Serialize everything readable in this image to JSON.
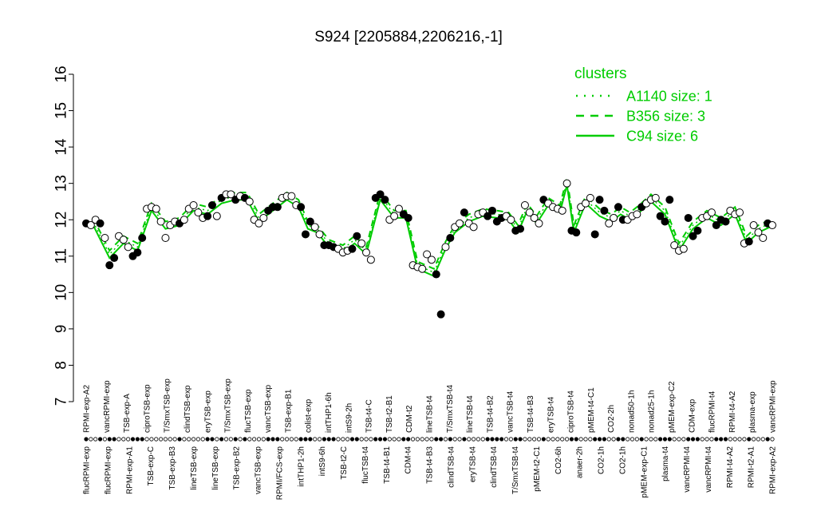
{
  "chart_data": {
    "type": "line",
    "title": "S924 [2205884,2206216,-1]",
    "xlabel": "",
    "ylabel": "",
    "ylim": [
      7,
      16
    ],
    "yticks": [
      7,
      8,
      9,
      10,
      11,
      12,
      13,
      14,
      15,
      16
    ],
    "grid": false,
    "line_color": "#00cc00",
    "legend": {
      "position": "top-right",
      "title": "clusters",
      "entries": [
        {
          "label": "A1140 size: 1",
          "style": "dotted"
        },
        {
          "label": "B356 size: 3",
          "style": "dashed"
        },
        {
          "label": "C94 size: 6",
          "style": "solid"
        }
      ]
    },
    "top_labels": [
      "RPMI-exp-A2",
      "vancRPMI-exp",
      "TSB-exp-A",
      "ciproTSB-exp",
      "T/SmxTSB-exp",
      "clindTSB-exp",
      "eryTSB-exp",
      "T/SmxTSB-exp",
      "flucTSB-exp",
      "vancTSB-exp",
      "TSB-exp-B1",
      "colist-exp",
      "intTHP1-6h",
      "intS9-2h",
      "TSB-t4-C",
      "TSB-t2-B1",
      "CDM-t2",
      "lineTSB-t4",
      "T/SmxTSB-t4",
      "lineTSB-t4",
      "TSB-t4-B2",
      "vancTSB-t4",
      "TSB-t4-B3",
      "eryTSB-t4",
      "ciproTSB-t4",
      "pMEM-t4-C1",
      "CO2-2h",
      "nonad50-1h",
      "nonad25-1h",
      "pMEM-exp-C2",
      "CDM-exp",
      "flucRPMI-t4",
      "RPMI-t4-A2",
      "plasma-exp",
      "vancRPMI-exp"
    ],
    "bottom_labels": [
      "flucRPMI-exp",
      "flucRPMI-exp",
      "RPMI-exp-A1",
      "TSB-exp-C",
      "TSB-exp-B3",
      "lineTSB-exp",
      "lineTSB-exp",
      "TSB-exp-B2",
      "vancTSB-exp",
      "RPMI/FCS-exp",
      "intTHP1-2h",
      "intS9-6h",
      "TSB-t2-C",
      "flucTSB-t4",
      "TSB-t4-B1",
      "CDM-t4",
      "TSB-t4-B3",
      "clindTSB-t4",
      "eryTSB-t4",
      "clindTSB-t4",
      "T/SmxTSB-t4",
      "pMEM-t2-C1",
      "CO2-6h",
      "anaer-2h",
      "CO2-1h",
      "CO2-1h",
      "pMEM-exp-C1",
      "plasma-t4",
      "vancRPMI-t4",
      "vancRPMI-t4",
      "RPMI-t4-A2",
      "RPMI-t2-A1",
      "RPMI-exp-A2"
    ],
    "groups": [
      {
        "points": [
          11.9,
          11.85,
          12.0,
          11.9
        ],
        "mean": 11.9,
        "filled": [
          true,
          false,
          false,
          true
        ]
      },
      {
        "points": [
          11.5,
          10.75,
          10.95
        ],
        "mean": 11.0,
        "filled": [
          false,
          true,
          true
        ]
      },
      {
        "points": [
          11.55,
          11.45,
          11.25
        ],
        "mean": 11.4,
        "filled": [
          false,
          false,
          false
        ]
      },
      {
        "points": [
          11.0,
          11.1,
          11.5
        ],
        "mean": 11.2,
        "filled": [
          true,
          true,
          true
        ]
      },
      {
        "points": [
          12.3,
          12.35,
          12.3
        ],
        "mean": 12.3,
        "filled": [
          false,
          false,
          false
        ]
      },
      {
        "points": [
          11.95,
          11.5,
          11.85
        ],
        "mean": 11.8,
        "filled": [
          false,
          false,
          false
        ]
      },
      {
        "points": [
          11.95,
          11.9,
          12.0
        ],
        "mean": 11.9,
        "filled": [
          false,
          true,
          false
        ]
      },
      {
        "points": [
          12.3,
          12.4,
          12.2
        ],
        "mean": 12.3,
        "filled": [
          false,
          false,
          false
        ]
      },
      {
        "points": [
          12.05,
          12.1,
          12.4
        ],
        "mean": 12.2,
        "filled": [
          false,
          true,
          true
        ]
      },
      {
        "points": [
          12.1,
          12.6,
          12.7
        ],
        "mean": 12.5,
        "filled": [
          false,
          true,
          false
        ]
      },
      {
        "points": [
          12.7,
          12.55,
          12.65
        ],
        "mean": 12.6,
        "filled": [
          false,
          true,
          false
        ]
      },
      {
        "points": [
          12.6,
          12.5
        ],
        "mean": 12.6,
        "filled": [
          true,
          false
        ]
      },
      {
        "points": [
          12.0,
          11.9,
          12.05
        ],
        "mean": 12.0,
        "filled": [
          false,
          false,
          false
        ]
      },
      {
        "points": [
          12.25,
          12.35,
          12.35
        ],
        "mean": 12.3,
        "filled": [
          true,
          true,
          true
        ]
      },
      {
        "points": [
          12.6,
          12.65,
          12.65
        ],
        "mean": 12.6,
        "filled": [
          false,
          false,
          false
        ]
      },
      {
        "points": [
          12.4,
          12.35
        ],
        "mean": 12.4,
        "filled": [
          false,
          true
        ]
      },
      {
        "points": [
          11.6,
          11.95
        ],
        "mean": 11.8,
        "filled": [
          true,
          true
        ]
      },
      {
        "points": [
          11.8,
          11.6
        ],
        "mean": 11.7,
        "filled": [
          false,
          false
        ]
      },
      {
        "points": [
          11.3,
          11.3,
          11.25
        ],
        "mean": 11.3,
        "filled": [
          true,
          true,
          true
        ]
      },
      {
        "points": [
          11.2,
          11.1,
          11.15
        ],
        "mean": 11.15,
        "filled": [
          false,
          false,
          false
        ]
      },
      {
        "points": [
          11.2,
          11.55
        ],
        "mean": 11.4,
        "filled": [
          true,
          true
        ]
      },
      {
        "points": [
          11.35,
          11.1,
          10.9
        ],
        "mean": 11.1,
        "filled": [
          false,
          false,
          false
        ]
      },
      {
        "points": [
          12.6,
          12.7,
          12.55
        ],
        "mean": 12.6,
        "filled": [
          true,
          true,
          true
        ]
      },
      {
        "points": [
          12.0,
          12.1,
          12.3
        ],
        "mean": 12.1,
        "filled": [
          false,
          false,
          false
        ]
      },
      {
        "points": [
          12.15,
          12.05
        ],
        "mean": 12.1,
        "filled": [
          true,
          true
        ]
      },
      {
        "points": [
          10.75,
          10.7,
          10.65
        ],
        "mean": 10.7,
        "filled": [
          false,
          false,
          false
        ]
      },
      {
        "points": [
          11.05,
          10.9,
          10.5,
          9.4
        ],
        "mean": 10.5,
        "filled": [
          false,
          false,
          true,
          true
        ]
      },
      {
        "points": [
          11.25
        ],
        "mean": 11.25,
        "filled": [
          false
        ]
      },
      {
        "points": [
          11.5,
          11.8,
          11.9
        ],
        "mean": 11.7,
        "filled": [
          true,
          false,
          false
        ]
      },
      {
        "points": [
          12.2,
          11.9,
          11.8
        ],
        "mean": 12.0,
        "filled": [
          true,
          false,
          false
        ]
      },
      {
        "points": [
          12.15,
          12.2,
          12.1
        ],
        "mean": 12.15,
        "filled": [
          false,
          false,
          true
        ]
      },
      {
        "points": [
          12.25,
          11.95,
          12.05
        ],
        "mean": 12.1,
        "filled": [
          true,
          true,
          true
        ]
      },
      {
        "points": [
          12.1,
          12.0
        ],
        "mean": 12.05,
        "filled": [
          false,
          false
        ]
      },
      {
        "points": [
          11.7,
          11.75
        ],
        "mean": 11.7,
        "filled": [
          true,
          true
        ]
      },
      {
        "points": [
          12.4,
          12.2
        ],
        "mean": 12.3,
        "filled": [
          false,
          false
        ]
      },
      {
        "points": [
          12.05,
          11.9
        ],
        "mean": 11.95,
        "filled": [
          false,
          false
        ]
      },
      {
        "points": [
          12.55,
          12.45,
          12.35
        ],
        "mean": 12.45,
        "filled": [
          true,
          false,
          false
        ]
      },
      {
        "points": [
          12.3,
          12.25
        ],
        "mean": 12.25,
        "filled": [
          false,
          false
        ]
      },
      {
        "points": [
          13.0
        ],
        "mean": 13.0,
        "filled": [
          false
        ]
      },
      {
        "points": [
          11.7,
          11.65
        ],
        "mean": 11.7,
        "filled": [
          true,
          true
        ]
      },
      {
        "points": [
          12.35,
          12.45,
          12.6
        ],
        "mean": 12.5,
        "filled": [
          false,
          false,
          false
        ]
      },
      {
        "points": [
          11.6,
          12.55,
          12.25
        ],
        "mean": 12.15,
        "filled": [
          true,
          true,
          true
        ]
      },
      {
        "points": [
          11.9,
          12.05
        ],
        "mean": 12.0,
        "filled": [
          false,
          false
        ]
      },
      {
        "points": [
          12.35,
          12.0
        ],
        "mean": 12.2,
        "filled": [
          true,
          true
        ]
      },
      {
        "points": [
          12.0,
          12.1
        ],
        "mean": 12.05,
        "filled": [
          false,
          false
        ]
      },
      {
        "points": [
          12.15,
          12.35
        ],
        "mean": 12.25,
        "filled": [
          false,
          true
        ]
      },
      {
        "points": [
          12.45,
          12.55,
          12.6
        ],
        "mean": 12.55,
        "filled": [
          false,
          false,
          false
        ]
      },
      {
        "points": [
          12.1,
          11.95,
          12.55
        ],
        "mean": 12.2,
        "filled": [
          true,
          true,
          true
        ]
      },
      {
        "points": [
          11.3,
          11.15,
          11.2
        ],
        "mean": 11.2,
        "filled": [
          false,
          false,
          false
        ]
      },
      {
        "points": [
          12.05,
          11.55,
          11.7
        ],
        "mean": 11.8,
        "filled": [
          true,
          true,
          true
        ]
      },
      {
        "points": [
          12.05,
          12.1,
          12.2
        ],
        "mean": 12.1,
        "filled": [
          false,
          false,
          false
        ]
      },
      {
        "points": [
          11.85,
          12.0,
          11.95
        ],
        "mean": 11.9,
        "filled": [
          true,
          true,
          true
        ]
      },
      {
        "points": [
          12.25,
          12.15,
          12.2
        ],
        "mean": 12.2,
        "filled": [
          false,
          false,
          false
        ]
      },
      {
        "points": [
          11.35,
          11.4
        ],
        "mean": 11.4,
        "filled": [
          false,
          true
        ]
      },
      {
        "points": [
          11.85,
          11.65,
          11.5
        ],
        "mean": 11.7,
        "filled": [
          false,
          false,
          false
        ]
      },
      {
        "points": [
          11.9,
          11.85
        ],
        "mean": 11.85,
        "filled": [
          true,
          false
        ]
      }
    ]
  }
}
